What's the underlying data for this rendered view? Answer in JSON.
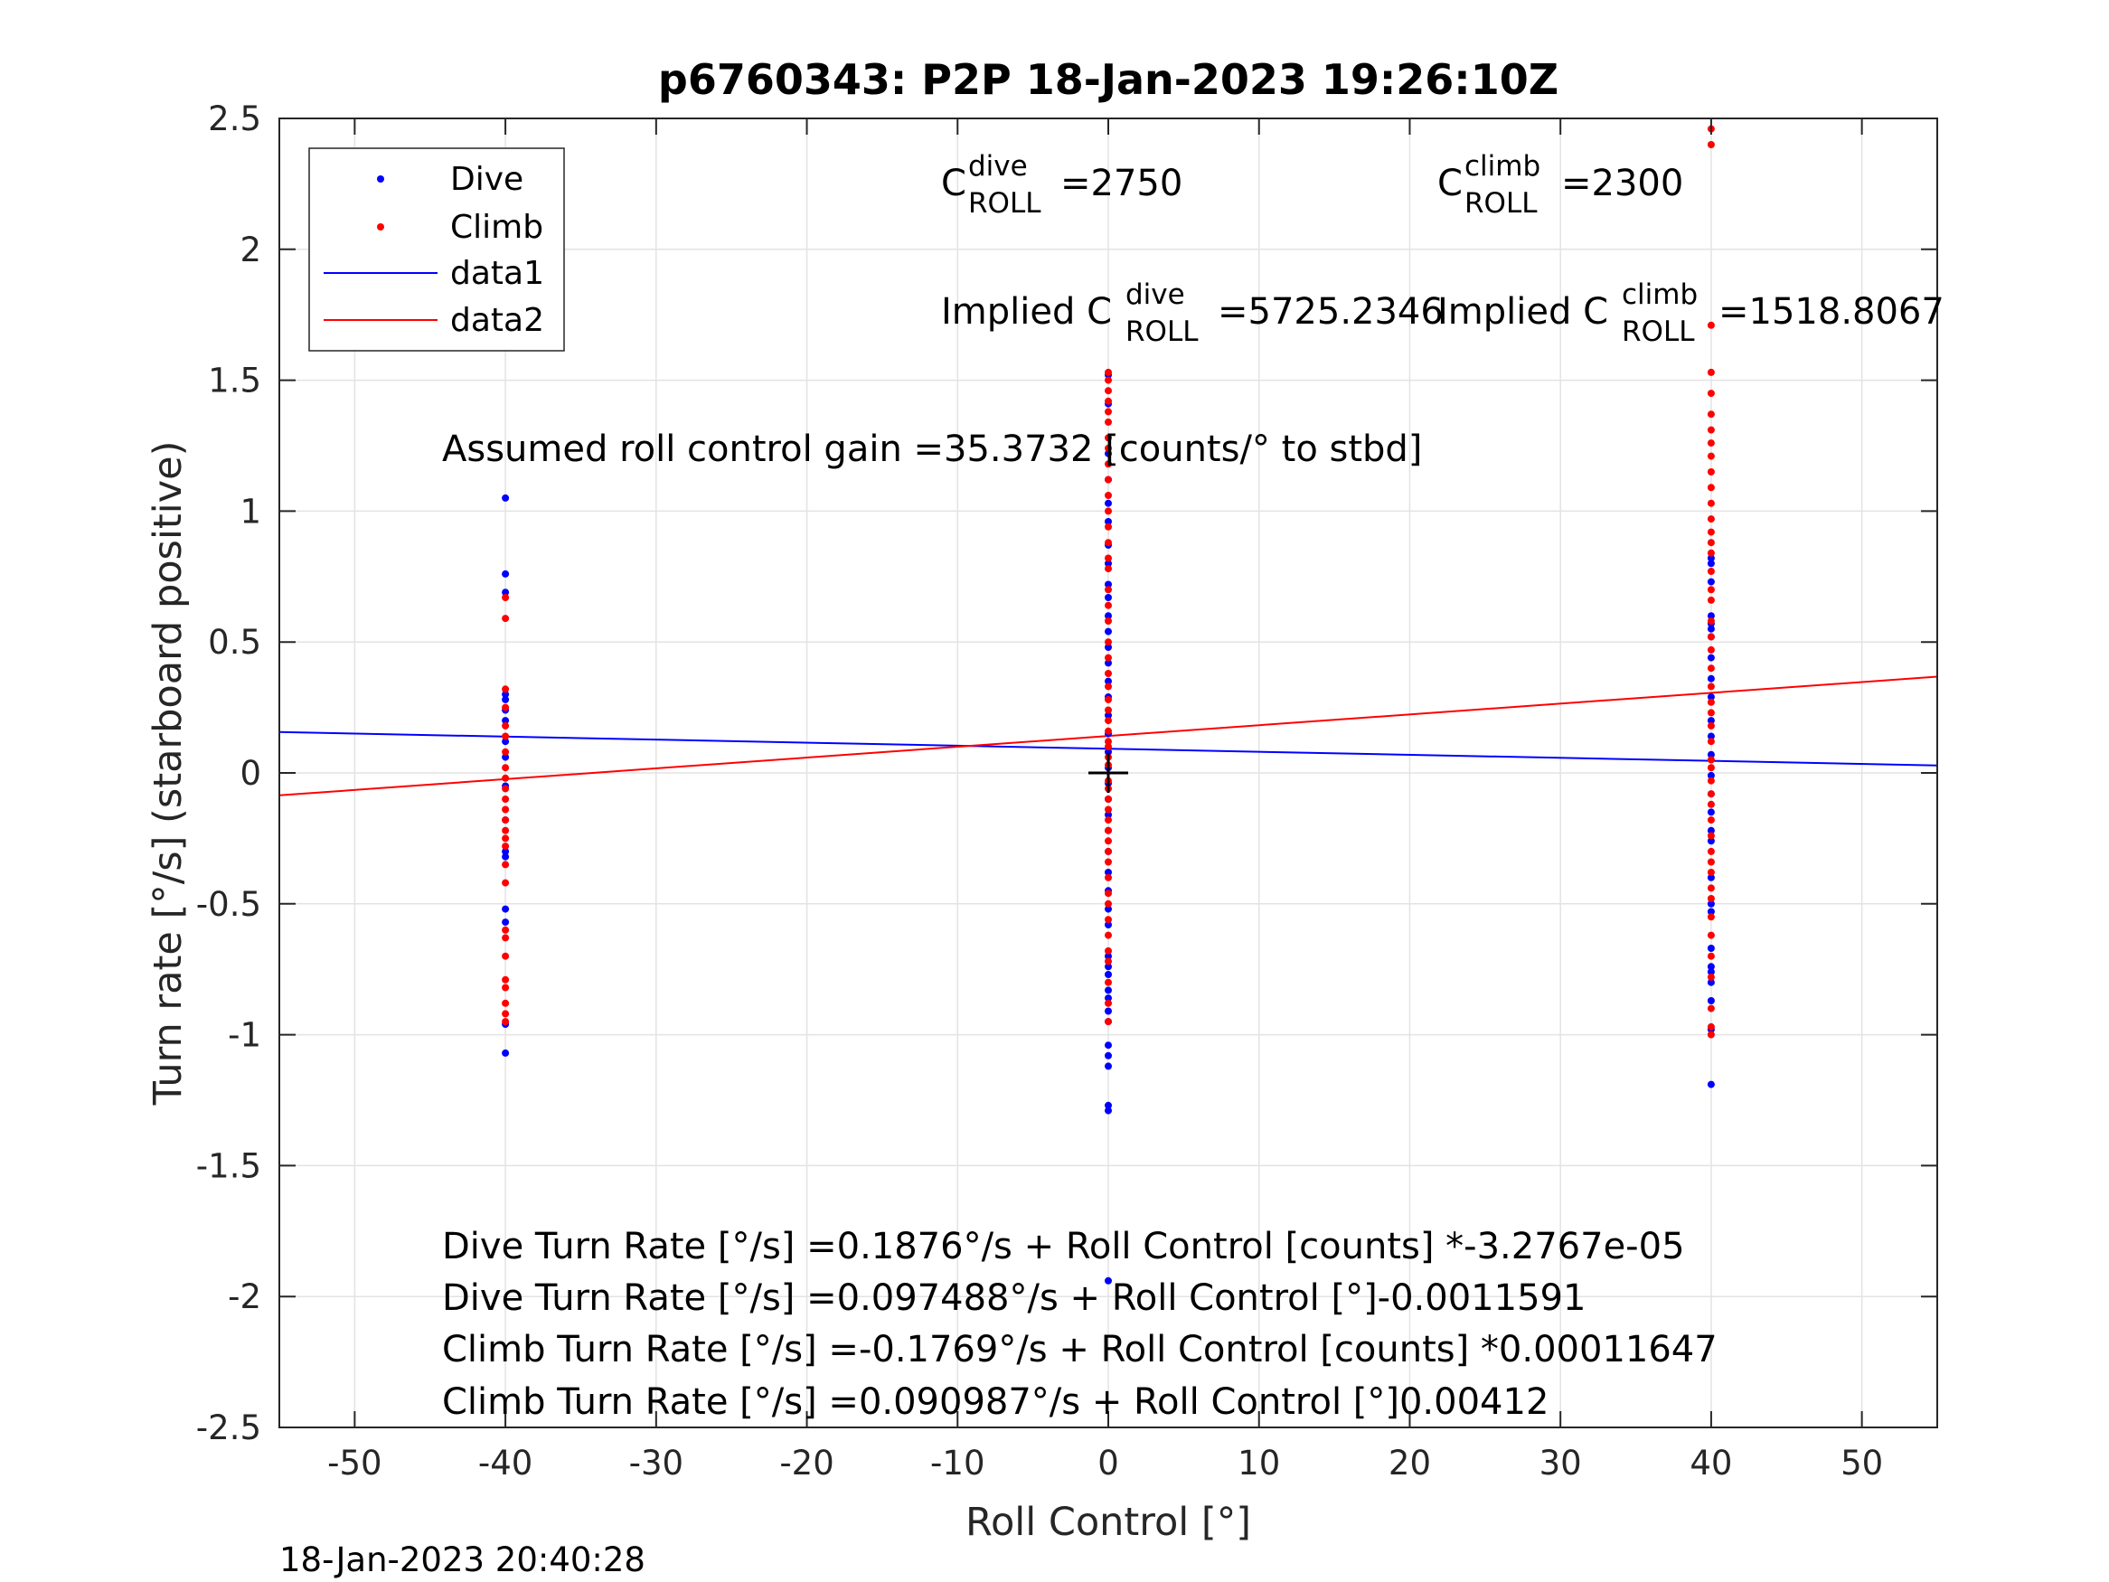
{
  "chart_data": {
    "type": "scatter",
    "title": "p6760343: P2P 18-Jan-2023 19:26:10Z",
    "xlabel": "Roll Control [°]",
    "ylabel": "Turn rate [°/s] (starboard positive)",
    "xlim": [
      -55,
      55
    ],
    "ylim": [
      -2.5,
      2.5
    ],
    "xticks": [
      -50,
      -40,
      -30,
      -20,
      -10,
      0,
      10,
      20,
      30,
      40,
      50
    ],
    "yticks": [
      -2.5,
      -2,
      -1.5,
      -1,
      -0.5,
      0,
      0.5,
      1,
      1.5,
      2,
      2.5
    ],
    "xtick_labels": [
      "-50",
      "-40",
      "-30",
      "-20",
      "-10",
      "0",
      "10",
      "20",
      "30",
      "40",
      "50"
    ],
    "ytick_labels": [
      "-2.5",
      "-2",
      "-1.5",
      "-1",
      "-0.5",
      "0",
      "0.5",
      "1",
      "1.5",
      "2",
      "2.5"
    ],
    "grid": true,
    "legend_position": "top-left",
    "series": [
      {
        "name": "Dive",
        "kind": "points",
        "color": "#0000ff",
        "points": [
          [
            -40,
            1.05
          ],
          [
            -40,
            0.76
          ],
          [
            -40,
            0.69
          ],
          [
            -40,
            0.3
          ],
          [
            -40,
            0.28
          ],
          [
            -40,
            0.24
          ],
          [
            -40,
            0.2
          ],
          [
            -40,
            0.12
          ],
          [
            -40,
            0.06
          ],
          [
            -40,
            -0.05
          ],
          [
            -40,
            -0.18
          ],
          [
            -40,
            -0.3
          ],
          [
            -40,
            -0.32
          ],
          [
            -40,
            -0.52
          ],
          [
            -40,
            -0.57
          ],
          [
            -40,
            -0.96
          ],
          [
            -40,
            -1.07
          ],
          [
            0,
            1.52
          ],
          [
            0,
            1.41
          ],
          [
            0,
            1.22
          ],
          [
            0,
            1.12
          ],
          [
            0,
            1.03
          ],
          [
            0,
            0.96
          ],
          [
            0,
            0.87
          ],
          [
            0,
            0.8
          ],
          [
            0,
            0.72
          ],
          [
            0,
            0.67
          ],
          [
            0,
            0.6
          ],
          [
            0,
            0.54
          ],
          [
            0,
            0.48
          ],
          [
            0,
            0.42
          ],
          [
            0,
            0.35
          ],
          [
            0,
            0.29
          ],
          [
            0,
            0.22
          ],
          [
            0,
            0.15
          ],
          [
            0,
            0.08
          ],
          [
            0,
            0.02
          ],
          [
            0,
            -0.04
          ],
          [
            0,
            -0.1
          ],
          [
            0,
            -0.16
          ],
          [
            0,
            -0.22
          ],
          [
            0,
            -0.3
          ],
          [
            0,
            -0.38
          ],
          [
            0,
            -0.45
          ],
          [
            0,
            -0.52
          ],
          [
            0,
            -0.58
          ],
          [
            0,
            -0.7
          ],
          [
            0,
            -0.74
          ],
          [
            0,
            -0.77
          ],
          [
            0,
            -0.83
          ],
          [
            0,
            -0.86
          ],
          [
            0,
            -0.91
          ],
          [
            0,
            -0.95
          ],
          [
            0,
            -1.04
          ],
          [
            0,
            -1.08
          ],
          [
            0,
            -1.12
          ],
          [
            0,
            -1.27
          ],
          [
            0,
            -1.29
          ],
          [
            0,
            -1.94
          ],
          [
            40,
            0.82
          ],
          [
            40,
            0.8
          ],
          [
            40,
            0.73
          ],
          [
            40,
            0.6
          ],
          [
            40,
            0.57
          ],
          [
            40,
            0.55
          ],
          [
            40,
            0.52
          ],
          [
            40,
            0.44
          ],
          [
            40,
            0.36
          ],
          [
            40,
            0.29
          ],
          [
            40,
            0.2
          ],
          [
            40,
            0.14
          ],
          [
            40,
            0.07
          ],
          [
            40,
            -0.01
          ],
          [
            40,
            -0.08
          ],
          [
            40,
            -0.15
          ],
          [
            40,
            -0.22
          ],
          [
            40,
            -0.26
          ],
          [
            40,
            -0.4
          ],
          [
            40,
            -0.5
          ],
          [
            40,
            -0.53
          ],
          [
            40,
            -0.67
          ],
          [
            40,
            -0.74
          ],
          [
            40,
            -0.76
          ],
          [
            40,
            -0.8
          ],
          [
            40,
            -0.87
          ],
          [
            40,
            -0.98
          ],
          [
            40,
            -1.19
          ]
        ]
      },
      {
        "name": "Climb",
        "kind": "points",
        "color": "#ff0000",
        "points": [
          [
            -40,
            0.67
          ],
          [
            -40,
            0.59
          ],
          [
            -40,
            0.32
          ],
          [
            -40,
            0.25
          ],
          [
            -40,
            0.18
          ],
          [
            -40,
            0.14
          ],
          [
            -40,
            0.08
          ],
          [
            -40,
            0.02
          ],
          [
            -40,
            -0.02
          ],
          [
            -40,
            -0.06
          ],
          [
            -40,
            -0.1
          ],
          [
            -40,
            -0.14
          ],
          [
            -40,
            -0.18
          ],
          [
            -40,
            -0.22
          ],
          [
            -40,
            -0.25
          ],
          [
            -40,
            -0.28
          ],
          [
            -40,
            -0.35
          ],
          [
            -40,
            -0.42
          ],
          [
            -40,
            -0.6
          ],
          [
            -40,
            -0.63
          ],
          [
            -40,
            -0.7
          ],
          [
            -40,
            -0.79
          ],
          [
            -40,
            -0.82
          ],
          [
            -40,
            -0.88
          ],
          [
            -40,
            -0.92
          ],
          [
            -40,
            -0.95
          ],
          [
            0,
            1.53
          ],
          [
            0,
            1.5
          ],
          [
            0,
            1.46
          ],
          [
            0,
            1.42
          ],
          [
            0,
            1.38
          ],
          [
            0,
            1.34
          ],
          [
            0,
            1.28
          ],
          [
            0,
            1.24
          ],
          [
            0,
            1.18
          ],
          [
            0,
            1.12
          ],
          [
            0,
            1.06
          ],
          [
            0,
            1.0
          ],
          [
            0,
            0.94
          ],
          [
            0,
            0.88
          ],
          [
            0,
            0.82
          ],
          [
            0,
            0.78
          ],
          [
            0,
            0.7
          ],
          [
            0,
            0.64
          ],
          [
            0,
            0.58
          ],
          [
            0,
            0.5
          ],
          [
            0,
            0.44
          ],
          [
            0,
            0.38
          ],
          [
            0,
            0.33
          ],
          [
            0,
            0.28
          ],
          [
            0,
            0.24
          ],
          [
            0,
            0.2
          ],
          [
            0,
            0.16
          ],
          [
            0,
            0.12
          ],
          [
            0,
            0.1
          ],
          [
            0,
            0.06
          ],
          [
            0,
            0.03
          ],
          [
            0,
            -0.03
          ],
          [
            0,
            -0.06
          ],
          [
            0,
            -0.1
          ],
          [
            0,
            -0.14
          ],
          [
            0,
            -0.18
          ],
          [
            0,
            -0.22
          ],
          [
            0,
            -0.26
          ],
          [
            0,
            -0.3
          ],
          [
            0,
            -0.34
          ],
          [
            0,
            -0.4
          ],
          [
            0,
            -0.46
          ],
          [
            0,
            -0.5
          ],
          [
            0,
            -0.56
          ],
          [
            0,
            -0.62
          ],
          [
            0,
            -0.68
          ],
          [
            0,
            -0.72
          ],
          [
            0,
            -0.8
          ],
          [
            0,
            -0.88
          ],
          [
            0,
            -0.95
          ],
          [
            40,
            2.46
          ],
          [
            40,
            2.4
          ],
          [
            40,
            1.71
          ],
          [
            40,
            1.53
          ],
          [
            40,
            1.45
          ],
          [
            40,
            1.37
          ],
          [
            40,
            1.31
          ],
          [
            40,
            1.26
          ],
          [
            40,
            1.21
          ],
          [
            40,
            1.15
          ],
          [
            40,
            1.09
          ],
          [
            40,
            1.03
          ],
          [
            40,
            0.97
          ],
          [
            40,
            0.92
          ],
          [
            40,
            0.88
          ],
          [
            40,
            0.84
          ],
          [
            40,
            0.77
          ],
          [
            40,
            0.7
          ],
          [
            40,
            0.66
          ],
          [
            40,
            0.58
          ],
          [
            40,
            0.52
          ],
          [
            40,
            0.47
          ],
          [
            40,
            0.4
          ],
          [
            40,
            0.33
          ],
          [
            40,
            0.27
          ],
          [
            40,
            0.23
          ],
          [
            40,
            0.18
          ],
          [
            40,
            0.12
          ],
          [
            40,
            0.05
          ],
          [
            40,
            0.02
          ],
          [
            40,
            -0.03
          ],
          [
            40,
            -0.08
          ],
          [
            40,
            -0.12
          ],
          [
            40,
            -0.18
          ],
          [
            40,
            -0.24
          ],
          [
            40,
            -0.3
          ],
          [
            40,
            -0.34
          ],
          [
            40,
            -0.38
          ],
          [
            40,
            -0.44
          ],
          [
            40,
            -0.48
          ],
          [
            40,
            -0.55
          ],
          [
            40,
            -0.62
          ],
          [
            40,
            -0.7
          ],
          [
            40,
            -0.78
          ],
          [
            40,
            -0.9
          ],
          [
            40,
            -0.97
          ],
          [
            40,
            -1.0
          ]
        ]
      },
      {
        "name": "data1",
        "kind": "line",
        "color": "#0000ff",
        "x": [
          -55,
          55
        ],
        "y": [
          0.1562,
          0.0287
        ]
      },
      {
        "name": "data2",
        "kind": "line",
        "color": "#ff0000",
        "x": [
          -55,
          55
        ],
        "y": [
          -0.0856,
          0.3676
        ]
      }
    ],
    "marker": {
      "x": 0,
      "y": 0,
      "symbol": "+",
      "color": "#000000"
    },
    "annotations": {
      "c_roll_dive": {
        "base": "C",
        "sup": "dive",
        "sub": "ROLL",
        "value": "=2750"
      },
      "c_roll_climb": {
        "base": "C",
        "sup": "climb",
        "sub": "ROLL",
        "value": "=2300"
      },
      "implied_dive": {
        "prefix": "Implied C",
        "sup": "dive",
        "sub": "ROLL",
        "value": "=5725.2346"
      },
      "implied_climb": {
        "prefix": "Implied C",
        "sup": "climb",
        "sub": "ROLL",
        "value": "=1518.8067"
      },
      "gain": "Assumed roll control gain =35.3732 [counts/° to stbd]",
      "eq1": "Dive Turn Rate [°/s] =0.1876°/s + Roll Control [counts] *-3.2767e-05",
      "eq2": "Dive Turn Rate [°/s] =0.097488°/s + Roll Control [°]-0.0011591",
      "eq3": "Climb Turn Rate [°/s] =-0.1769°/s + Roll Control [counts] *0.00011647",
      "eq4": "Climb Turn Rate [°/s] =0.090987°/s + Roll Control [°]0.00412"
    },
    "timestamp": "18-Jan-2023 20:40:28"
  }
}
